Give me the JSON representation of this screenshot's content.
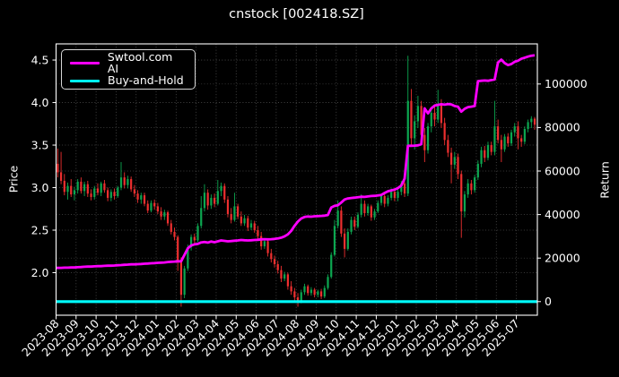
{
  "figure": {
    "title": "cnstock [002418.SZ]"
  },
  "legend": {
    "items": [
      {
        "label": "Swtool.com AI",
        "color": "#ff00ff"
      },
      {
        "label": "Buy-and-Hold",
        "color": "#00ffff"
      }
    ]
  },
  "axes": {
    "x": {
      "tick_labels": [
        "2023-08",
        "2023-09",
        "2023-10",
        "2023-11",
        "2023-12",
        "2024-01",
        "2024-02",
        "2024-03",
        "2024-04",
        "2024-05",
        "2024-06",
        "2024-07",
        "2024-08",
        "2024-09",
        "2024-10",
        "2024-11",
        "2024-12",
        "2025-01",
        "2025-02",
        "2025-03",
        "2025-04",
        "2025-05",
        "2025-06",
        "2025-07"
      ]
    },
    "price": {
      "label": "Price",
      "ticks": [
        2.0,
        2.5,
        3.0,
        3.5,
        4.0,
        4.5
      ],
      "range": [
        1.5,
        4.69
      ]
    },
    "return": {
      "label": "Return",
      "ticks": [
        0,
        20000,
        40000,
        60000,
        80000,
        100000
      ],
      "range": [
        -6255,
        118440
      ]
    }
  },
  "colors": {
    "background": "#000000",
    "text": "#ffffff",
    "grid": "#4d4d4d",
    "spine": "#ffffff",
    "candle_up": "#0ca750",
    "candle_down": "#ee2f2f",
    "ai_line": "#ff00ff",
    "buyhold_line": "#00ffff"
  },
  "chart_data": {
    "type": "candlestick",
    "title": "cnstock [002418.SZ]",
    "x_start": "2023-08",
    "x_end": "2025-07",
    "candles_per_month": 6,
    "grid": true,
    "legend_position": "upper left",
    "candles": [
      [
        3.28,
        3.46,
        3.12,
        3.18
      ],
      [
        3.18,
        3.42,
        3.04,
        3.08
      ],
      [
        3.08,
        3.16,
        2.91,
        2.95
      ],
      [
        2.95,
        3.06,
        2.86,
        3.02
      ],
      [
        3.02,
        3.1,
        2.89,
        2.92
      ],
      [
        2.92,
        3.01,
        2.85,
        2.97
      ],
      [
        2.97,
        3.1,
        2.93,
        3.07
      ],
      [
        3.07,
        3.12,
        2.93,
        2.96
      ],
      [
        2.96,
        3.07,
        2.9,
        3.04
      ],
      [
        3.04,
        3.08,
        2.89,
        2.93
      ],
      [
        2.93,
        2.98,
        2.85,
        2.89
      ],
      [
        2.89,
        3.02,
        2.86,
        2.99
      ],
      [
        2.99,
        3.05,
        2.91,
        2.94
      ],
      [
        2.94,
        3.07,
        2.9,
        3.05
      ],
      [
        3.05,
        3.09,
        2.94,
        2.97
      ],
      [
        2.97,
        3.0,
        2.84,
        2.88
      ],
      [
        2.88,
        2.98,
        2.84,
        2.95
      ],
      [
        2.95,
        2.99,
        2.86,
        2.9
      ],
      [
        2.9,
        3.02,
        2.88,
        3.0
      ],
      [
        3.0,
        3.3,
        2.97,
        3.12
      ],
      [
        3.12,
        3.18,
        2.99,
        3.03
      ],
      [
        3.03,
        3.14,
        2.99,
        3.1
      ],
      [
        3.1,
        3.13,
        2.95,
        2.98
      ],
      [
        2.98,
        3.03,
        2.89,
        2.93
      ],
      [
        2.93,
        2.97,
        2.82,
        2.86
      ],
      [
        2.86,
        2.94,
        2.81,
        2.91
      ],
      [
        2.91,
        2.94,
        2.78,
        2.81
      ],
      [
        2.81,
        2.85,
        2.7,
        2.73
      ],
      [
        2.73,
        2.85,
        2.71,
        2.82
      ],
      [
        2.82,
        2.86,
        2.74,
        2.78
      ],
      [
        2.78,
        2.82,
        2.69,
        2.72
      ],
      [
        2.72,
        2.77,
        2.62,
        2.66
      ],
      [
        2.66,
        2.74,
        2.62,
        2.71
      ],
      [
        2.71,
        2.73,
        2.55,
        2.58
      ],
      [
        2.58,
        2.62,
        2.45,
        2.48
      ],
      [
        2.48,
        2.53,
        2.38,
        2.42
      ],
      [
        2.42,
        2.44,
        2.02,
        2.12
      ],
      [
        2.12,
        2.18,
        1.6,
        1.74
      ],
      [
        1.74,
        2.08,
        1.7,
        2.05
      ],
      [
        2.05,
        2.33,
        2.02,
        2.3
      ],
      [
        2.3,
        2.45,
        2.26,
        2.42
      ],
      [
        2.42,
        2.46,
        2.33,
        2.38
      ],
      [
        2.38,
        2.58,
        2.36,
        2.55
      ],
      [
        2.55,
        2.9,
        2.52,
        2.76
      ],
      [
        2.76,
        3.04,
        2.72,
        2.94
      ],
      [
        2.94,
        2.98,
        2.74,
        2.79
      ],
      [
        2.79,
        2.92,
        2.75,
        2.88
      ],
      [
        2.88,
        2.93,
        2.77,
        2.81
      ],
      [
        2.81,
        3.09,
        2.79,
        2.96
      ],
      [
        2.96,
        3.06,
        2.9,
        3.02
      ],
      [
        3.02,
        3.05,
        2.82,
        2.86
      ],
      [
        2.86,
        2.9,
        2.65,
        2.69
      ],
      [
        2.69,
        2.76,
        2.58,
        2.62
      ],
      [
        2.62,
        2.94,
        2.6,
        2.78
      ],
      [
        2.78,
        2.81,
        2.63,
        2.66
      ],
      [
        2.66,
        2.72,
        2.55,
        2.58
      ],
      [
        2.58,
        2.68,
        2.55,
        2.64
      ],
      [
        2.64,
        2.67,
        2.49,
        2.53
      ],
      [
        2.53,
        2.62,
        2.5,
        2.58
      ],
      [
        2.58,
        2.61,
        2.47,
        2.5
      ],
      [
        2.5,
        2.55,
        2.39,
        2.43
      ],
      [
        2.43,
        2.48,
        2.27,
        2.31
      ],
      [
        2.31,
        2.4,
        2.28,
        2.37
      ],
      [
        2.37,
        2.39,
        2.19,
        2.23
      ],
      [
        2.23,
        2.28,
        2.12,
        2.16
      ],
      [
        2.16,
        2.2,
        2.06,
        2.1
      ],
      [
        2.1,
        2.14,
        1.99,
        2.03
      ],
      [
        2.03,
        2.08,
        1.89,
        1.93
      ],
      [
        1.93,
        2.01,
        1.9,
        1.98
      ],
      [
        1.98,
        2.0,
        1.8,
        1.84
      ],
      [
        1.84,
        1.9,
        1.74,
        1.78
      ],
      [
        1.78,
        1.82,
        1.65,
        1.71
      ],
      [
        1.71,
        1.76,
        1.6,
        1.67
      ],
      [
        1.67,
        1.8,
        1.64,
        1.77
      ],
      [
        1.77,
        1.87,
        1.74,
        1.84
      ],
      [
        1.84,
        1.86,
        1.73,
        1.76
      ],
      [
        1.76,
        1.83,
        1.73,
        1.8
      ],
      [
        1.8,
        1.82,
        1.71,
        1.74
      ],
      [
        1.74,
        1.8,
        1.71,
        1.78
      ],
      [
        1.78,
        1.81,
        1.69,
        1.72
      ],
      [
        1.72,
        1.85,
        1.7,
        1.82
      ],
      [
        1.82,
        1.98,
        1.8,
        1.95
      ],
      [
        1.95,
        2.24,
        1.93,
        2.21
      ],
      [
        2.21,
        2.62,
        2.19,
        2.55
      ],
      [
        2.55,
        2.85,
        2.52,
        2.73
      ],
      [
        2.73,
        2.78,
        2.42,
        2.46
      ],
      [
        2.46,
        2.52,
        2.18,
        2.28
      ],
      [
        2.28,
        2.52,
        2.26,
        2.48
      ],
      [
        2.48,
        2.66,
        2.45,
        2.62
      ],
      [
        2.62,
        2.66,
        2.5,
        2.54
      ],
      [
        2.54,
        2.71,
        2.52,
        2.68
      ],
      [
        2.68,
        2.92,
        2.65,
        2.81
      ],
      [
        2.81,
        2.85,
        2.66,
        2.7
      ],
      [
        2.7,
        2.81,
        2.67,
        2.78
      ],
      [
        2.78,
        2.8,
        2.61,
        2.65
      ],
      [
        2.65,
        2.75,
        2.62,
        2.72
      ],
      [
        2.72,
        2.85,
        2.7,
        2.82
      ],
      [
        2.82,
        2.93,
        2.79,
        2.9
      ],
      [
        2.9,
        2.93,
        2.77,
        2.81
      ],
      [
        2.81,
        2.91,
        2.78,
        2.88
      ],
      [
        2.88,
        2.99,
        2.85,
        2.95
      ],
      [
        2.95,
        2.98,
        2.84,
        2.88
      ],
      [
        2.88,
        2.98,
        2.84,
        2.95
      ],
      [
        2.95,
        3.08,
        2.91,
        3.05
      ],
      [
        3.05,
        3.09,
        2.89,
        2.93
      ],
      [
        2.93,
        4.55,
        2.9,
        4.02
      ],
      [
        4.02,
        4.16,
        3.5,
        3.58
      ],
      [
        3.58,
        3.85,
        3.45,
        3.78
      ],
      [
        3.78,
        4.08,
        3.7,
        3.96
      ],
      [
        3.96,
        4.02,
        3.55,
        3.62
      ],
      [
        3.62,
        3.7,
        3.3,
        3.44
      ],
      [
        3.44,
        3.76,
        3.4,
        3.72
      ],
      [
        3.72,
        3.93,
        3.65,
        3.88
      ],
      [
        3.88,
        3.95,
        3.72,
        3.8
      ],
      [
        3.8,
        4.15,
        3.76,
        3.98
      ],
      [
        3.98,
        4.04,
        3.7,
        3.76
      ],
      [
        3.76,
        3.82,
        3.5,
        3.56
      ],
      [
        3.56,
        3.62,
        3.36,
        3.41
      ],
      [
        3.41,
        3.47,
        3.05,
        3.27
      ],
      [
        3.27,
        3.42,
        3.22,
        3.36
      ],
      [
        3.36,
        3.4,
        3.1,
        3.16
      ],
      [
        3.16,
        3.2,
        2.41,
        2.72
      ],
      [
        2.72,
        2.96,
        2.65,
        2.92
      ],
      [
        2.92,
        3.1,
        2.88,
        3.05
      ],
      [
        3.05,
        3.09,
        2.92,
        2.97
      ],
      [
        2.97,
        3.15,
        2.94,
        3.12
      ],
      [
        3.12,
        3.32,
        3.09,
        3.28
      ],
      [
        3.28,
        3.48,
        3.24,
        3.44
      ],
      [
        3.44,
        3.49,
        3.3,
        3.35
      ],
      [
        3.35,
        3.54,
        3.32,
        3.5
      ],
      [
        3.5,
        3.54,
        3.38,
        3.42
      ],
      [
        3.42,
        4.02,
        3.38,
        3.72
      ],
      [
        3.72,
        3.8,
        3.52,
        3.56
      ],
      [
        3.56,
        3.62,
        3.3,
        3.45
      ],
      [
        3.45,
        3.63,
        3.42,
        3.6
      ],
      [
        3.6,
        3.64,
        3.48,
        3.52
      ],
      [
        3.52,
        3.68,
        3.49,
        3.65
      ],
      [
        3.65,
        3.76,
        3.6,
        3.72
      ],
      [
        3.72,
        3.78,
        3.45,
        3.58
      ],
      [
        3.58,
        3.62,
        3.48,
        3.54
      ],
      [
        3.54,
        3.72,
        3.51,
        3.69
      ],
      [
        3.69,
        3.8,
        3.65,
        3.77
      ],
      [
        3.77,
        3.84,
        3.7,
        3.81
      ],
      [
        3.81,
        3.83,
        3.68,
        3.74
      ]
    ],
    "series": [
      {
        "name": "Swtool.com AI",
        "axis": "return",
        "color": "#ff00ff",
        "values": [
          15500,
          15500,
          15600,
          15600,
          15700,
          15700,
          15800,
          15900,
          16000,
          16100,
          16100,
          16200,
          16300,
          16300,
          16400,
          16500,
          16500,
          16600,
          16700,
          16800,
          16900,
          17000,
          17100,
          17100,
          17200,
          17300,
          17400,
          17500,
          17600,
          17700,
          17800,
          17900,
          18000,
          18200,
          18300,
          18400,
          18500,
          18500,
          21500,
          24500,
          25800,
          26300,
          26500,
          27200,
          27400,
          27100,
          27600,
          27300,
          27700,
          28100,
          27900,
          27700,
          27800,
          28000,
          28100,
          28300,
          28200,
          28100,
          28200,
          28300,
          28400,
          28600,
          28700,
          28600,
          28700,
          28800,
          29000,
          29400,
          30000,
          30900,
          32500,
          34800,
          36800,
          38200,
          38900,
          39100,
          39000,
          39200,
          39300,
          39400,
          39500,
          39800,
          43200,
          44000,
          44300,
          45500,
          46900,
          47400,
          47600,
          47800,
          48000,
          48200,
          48100,
          48300,
          48500,
          48600,
          48800,
          49000,
          49900,
          50700,
          51100,
          51500,
          52200,
          53300,
          56500,
          71600,
          71600,
          71700,
          71800,
          72300,
          88800,
          86500,
          88800,
          90100,
          90400,
          90700,
          90500,
          90800,
          90600,
          89900,
          89600,
          87300,
          88600,
          89400,
          89600,
          89900,
          101300,
          101500,
          101600,
          101500,
          101800,
          102100,
          109900,
          111200,
          109600,
          108700,
          109200,
          110200,
          110700,
          111600,
          112100,
          112600,
          113000,
          113200
        ]
      },
      {
        "name": "Buy-and-Hold",
        "axis": "return",
        "color": "#00ffff",
        "constant": 0
      }
    ]
  }
}
